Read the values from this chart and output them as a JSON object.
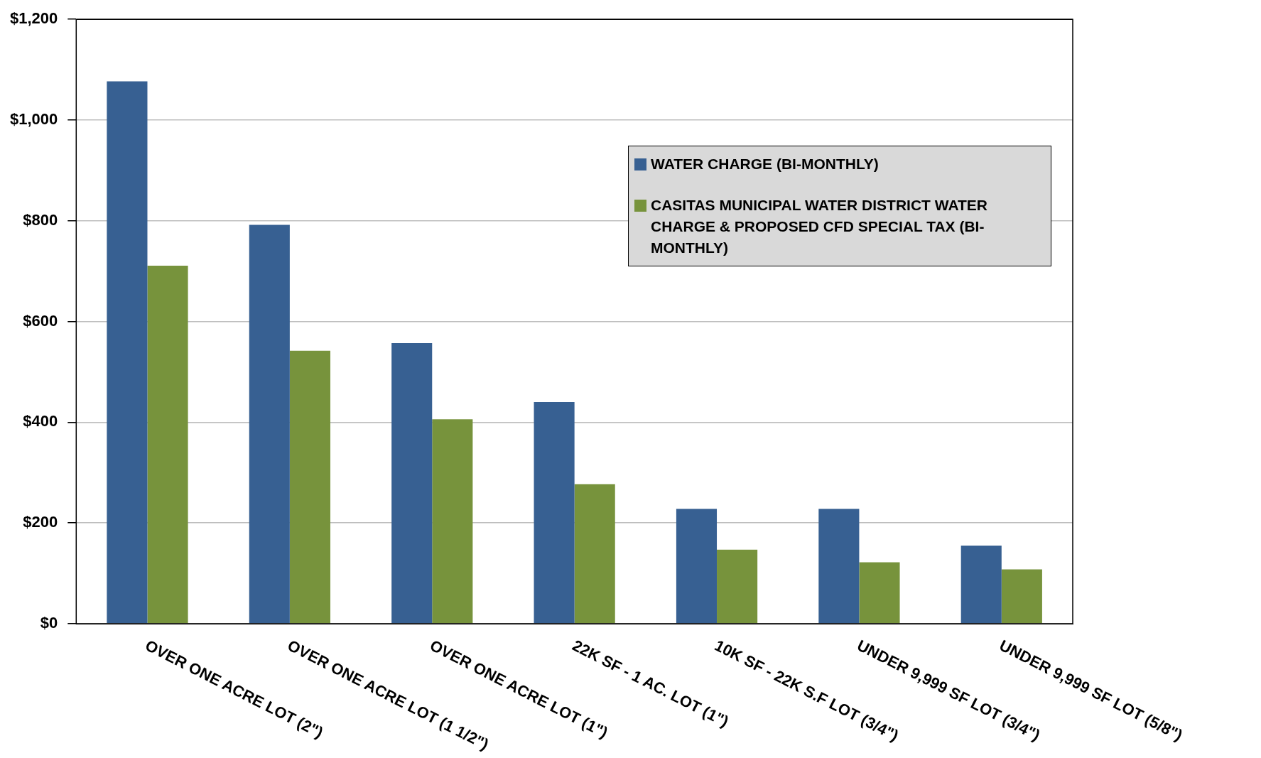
{
  "chart_data": {
    "type": "bar",
    "categories": [
      "OVER ONE ACRE LOT (2\")",
      "OVER ONE ACRE LOT (1 1/2\")",
      "OVER ONE ACRE LOT (1\")",
      "22K SF - 1 AC. LOT (1\")",
      "10K SF - 22K S.F LOT (3/4\")",
      "UNDER 9,999 SF LOT (3/4\")",
      "UNDER 9,999 SF LOT (5/8\")"
    ],
    "series": [
      {
        "name": "WATER CHARGE (BI-MONTHLY)",
        "color": "#376092",
        "values": [
          1077,
          792,
          557,
          440,
          228,
          228,
          155
        ]
      },
      {
        "name": "CASITAS MUNICIPAL WATER DISTRICT WATER CHARGE & PROPOSED CFD SPECIAL TAX (BI-MONTHLY)",
        "color": "#77933c",
        "values": [
          711,
          542,
          406,
          277,
          147,
          122,
          108
        ]
      }
    ],
    "ylim": [
      0,
      1200
    ],
    "yticks": [
      {
        "value": 0,
        "label": "$0"
      },
      {
        "value": 200,
        "label": "$200"
      },
      {
        "value": 400,
        "label": "$400"
      },
      {
        "value": 600,
        "label": "$600"
      },
      {
        "value": 800,
        "label": "$800"
      },
      {
        "value": 1000,
        "label": "$1,000"
      },
      {
        "value": 1200,
        "label": "$1,200"
      }
    ],
    "grid": "y",
    "legend": "top right"
  }
}
